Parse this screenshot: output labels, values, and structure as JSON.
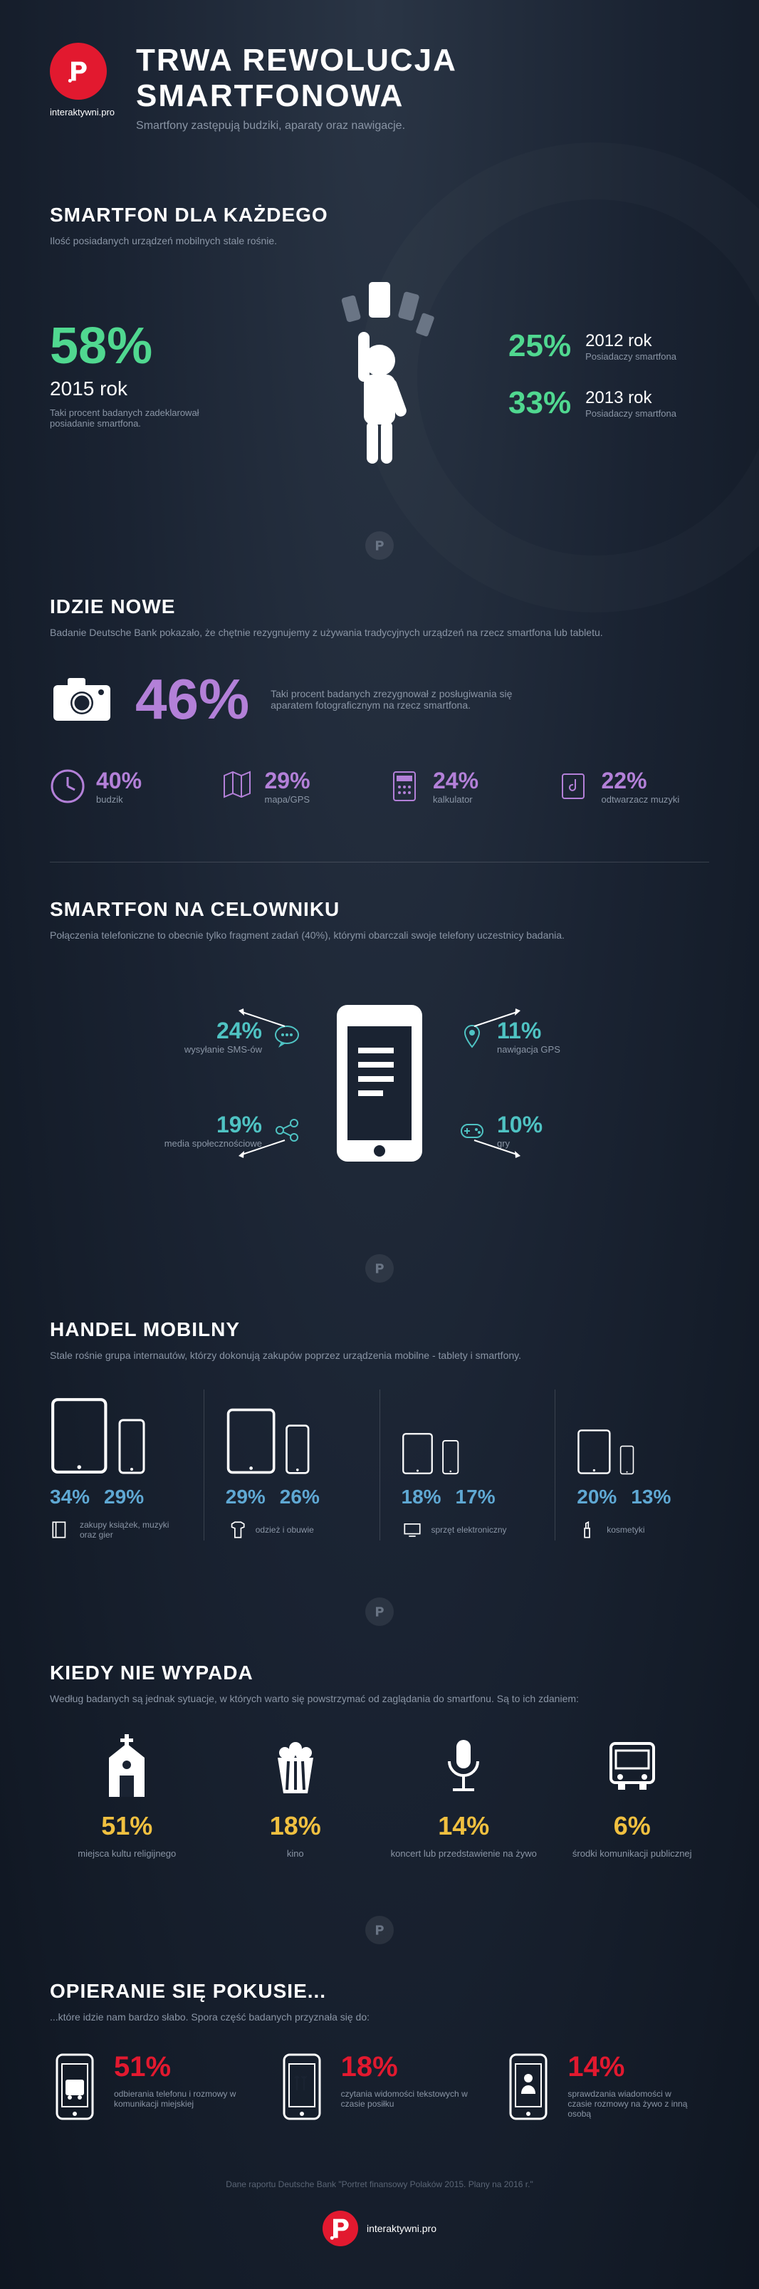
{
  "brand": "interaktywni.pro",
  "title": "TRWA REWOLUCJA SMARTFONOWA",
  "subtitle": "Smartfony zastępują budziki, aparaty oraz nawigacje.",
  "colors": {
    "green": "#50d890",
    "purple": "#b380d8",
    "teal": "#4fc3c3",
    "yellow": "#f0c040",
    "blue": "#5fa8d3",
    "red": "#e2192f",
    "bg": "#1a2332",
    "text_muted": "#8a95a5",
    "white": "#ffffff"
  },
  "s1": {
    "title": "SMARTFON DLA KAŻDEGO",
    "sub": "Ilość posiadanych urządzeń mobilnych stale rośnie.",
    "main_pct": "58%",
    "main_year": "2015 rok",
    "main_desc": "Taki procent badanych zadeklarował posiadanie smartfona.",
    "stats": [
      {
        "pct": "25%",
        "year": "2012 rok",
        "sub": "Posiadaczy smartfona"
      },
      {
        "pct": "33%",
        "year": "2013 rok",
        "sub": "Posiadaczy smartfona"
      }
    ]
  },
  "s2": {
    "title": "IDZIE NOWE",
    "sub": "Badanie Deutsche Bank pokazało, że chętnie rezygnujemy z używania tradycyjnych urządzeń na rzecz smartfona lub tabletu.",
    "hero_pct": "46%",
    "hero_desc": "Taki procent badanych zrezygnował z posługiwania się aparatem fotograficznym na rzecz smartfona.",
    "items": [
      {
        "pct": "40%",
        "label": "budzik",
        "icon": "clock"
      },
      {
        "pct": "29%",
        "label": "mapa/GPS",
        "icon": "map"
      },
      {
        "pct": "24%",
        "label": "kalkulator",
        "icon": "calculator"
      },
      {
        "pct": "22%",
        "label": "odtwarzacz muzyki",
        "icon": "music"
      }
    ]
  },
  "s3": {
    "title": "SMARTFON NA CELOWNIKU",
    "sub": "Połączenia telefoniczne to obecnie tylko fragment zadań (40%), którymi obarczali swoje telefony uczestnicy badania.",
    "left": [
      {
        "pct": "24%",
        "label": "wysyłanie SMS-ów",
        "icon": "sms"
      },
      {
        "pct": "19%",
        "label": "media społecznościowe",
        "icon": "share"
      }
    ],
    "right": [
      {
        "pct": "11%",
        "label": "nawigacja GPS",
        "icon": "pin"
      },
      {
        "pct": "10%",
        "label": "gry",
        "icon": "gamepad"
      }
    ]
  },
  "s4": {
    "title": "HANDEL MOBILNY",
    "sub": "Stale rośnie grupa internautów, którzy dokonują zakupów poprzez urządzenia mobilne - tablety i smartfony.",
    "items": [
      {
        "tablet_pct": "34%",
        "phone_pct": "29%",
        "label": "zakupy książek, muzyki oraz gier",
        "icon": "book",
        "tablet_h": 110,
        "phone_h": 80
      },
      {
        "tablet_pct": "29%",
        "phone_pct": "26%",
        "label": "odzież i obuwie",
        "icon": "shirt",
        "tablet_h": 95,
        "phone_h": 72
      },
      {
        "tablet_pct": "18%",
        "phone_pct": "17%",
        "label": "sprzęt elektroniczny",
        "icon": "monitor",
        "tablet_h": 60,
        "phone_h": 50
      },
      {
        "tablet_pct": "20%",
        "phone_pct": "13%",
        "label": "kosmetyki",
        "icon": "lipstick",
        "tablet_h": 65,
        "phone_h": 42
      }
    ]
  },
  "s5": {
    "title": "KIEDY NIE WYPADA",
    "sub": "Według badanych są jednak sytuacje, w których warto się powstrzymać od zaglądania do smartfonu. Są to ich zdaniem:",
    "items": [
      {
        "pct": "51%",
        "label": "miejsca kultu religijnego",
        "icon": "church"
      },
      {
        "pct": "18%",
        "label": "kino",
        "icon": "popcorn"
      },
      {
        "pct": "14%",
        "label": "koncert lub przedstawienie na żywo",
        "icon": "mic"
      },
      {
        "pct": "6%",
        "label": "środki komunikacji publicznej",
        "icon": "bus"
      }
    ]
  },
  "s6": {
    "title": "OPIERANIE SIĘ POKUSIE...",
    "sub": "...które idzie nam bardzo słabo. Spora część badanych przyznała się do:",
    "items": [
      {
        "pct": "51%",
        "label": "odbierania telefonu i rozmowy w komunikacji miejskiej",
        "icon": "phone-bus"
      },
      {
        "pct": "18%",
        "label": "czytania widomości tekstowych w czasie posiłku",
        "icon": "phone-fork"
      },
      {
        "pct": "14%",
        "label": "sprawdzania wiadomości w czasie rozmowy na żywo z inną osobą",
        "icon": "phone-person"
      }
    ]
  },
  "footer_source": "Dane raportu Deutsche Bank \"Portret finansowy Polaków 2015. Plany na 2016 r.\""
}
